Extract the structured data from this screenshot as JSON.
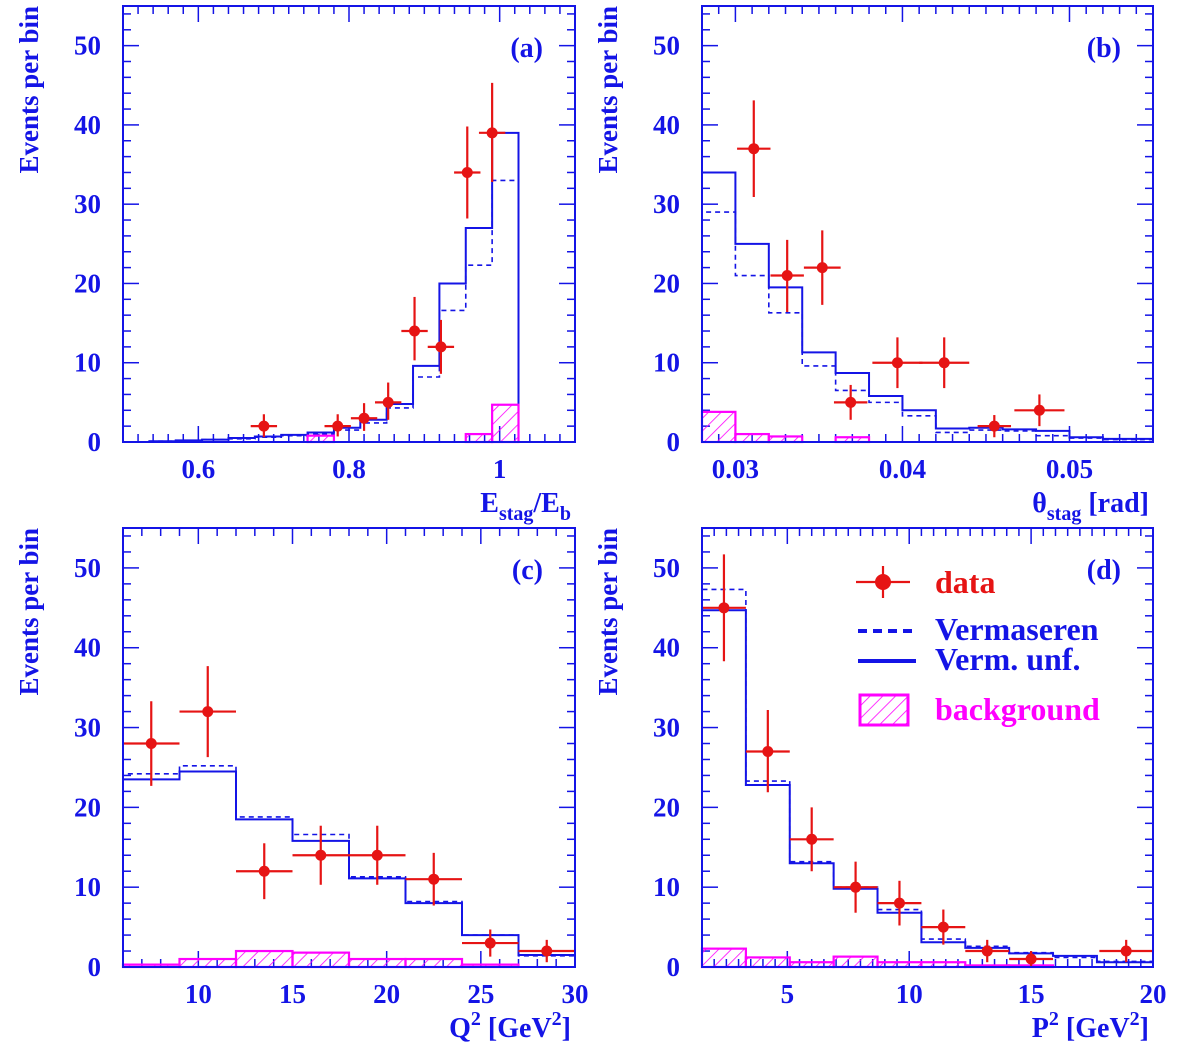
{
  "colors": {
    "axis": "#1414e6",
    "mc": "#1414e6",
    "data": "#e61414",
    "background": "#ff00ff"
  },
  "legend": {
    "data_label": "data",
    "vermaseren_label": "Vermaseren",
    "unf_label": "Verm. unf.",
    "background_label": "background"
  },
  "chart_data": [
    {
      "panel": "(a)",
      "type": "histogram",
      "ylabel": "Events per bin",
      "xlabel": {
        "main": "E",
        "sub": "stag",
        "mid": "/E",
        "sub2": "b",
        "rest": ""
      },
      "xlim": [
        0.5,
        1.1
      ],
      "ylim": [
        0,
        55
      ],
      "x_ticks": [
        0.6,
        0.8,
        1.0
      ],
      "x_tick_labels": [
        "0.6",
        "0.8",
        "1"
      ],
      "x_minor": 0.02,
      "y_ticks": [
        0,
        10,
        20,
        30,
        40,
        50
      ],
      "y_minor": 2,
      "grid": false,
      "bin_edges": [
        0.5,
        0.535,
        0.57,
        0.605,
        0.64,
        0.675,
        0.71,
        0.745,
        0.78,
        0.815,
        0.85,
        0.885,
        0.92,
        0.955,
        0.99,
        1.025,
        1.06,
        1.1
      ],
      "series": [
        {
          "name": "Verm. unf.",
          "style": "solid",
          "values": [
            0,
            0.1,
            0.2,
            0.3,
            0.5,
            0.7,
            0.9,
            1.2,
            1.8,
            2.8,
            4.8,
            9.6,
            20,
            27,
            39,
            0,
            0
          ]
        },
        {
          "name": "Vermaseren",
          "style": "dashed",
          "values": [
            0,
            0.1,
            0.2,
            0.3,
            0.4,
            0.6,
            0.8,
            1.0,
            1.5,
            2.4,
            4.3,
            8.2,
            16.6,
            22.3,
            33,
            0,
            0
          ]
        },
        {
          "name": "background",
          "style": "hatched",
          "values": [
            0,
            0,
            0,
            0,
            0,
            0,
            0,
            0.8,
            0,
            0,
            0,
            0,
            0,
            1.0,
            4.7,
            0,
            0
          ]
        }
      ],
      "data_points": [
        {
          "x": 0.687,
          "y": 2,
          "xerr": 0.0175,
          "yerr_low": 1.4,
          "yerr_high": 1.5
        },
        {
          "x": 0.785,
          "y": 2,
          "xerr": 0.0175,
          "yerr_low": 1.3,
          "yerr_high": 1.5
        },
        {
          "x": 0.82,
          "y": 3,
          "xerr": 0.0175,
          "yerr_low": 1.6,
          "yerr_high": 1.9
        },
        {
          "x": 0.852,
          "y": 5,
          "xerr": 0.0175,
          "yerr_low": 2.2,
          "yerr_high": 2.5
        },
        {
          "x": 0.887,
          "y": 14,
          "xerr": 0.0175,
          "yerr_low": 3.7,
          "yerr_high": 4.3
        },
        {
          "x": 0.922,
          "y": 12,
          "xerr": 0.0175,
          "yerr_low": 3.4,
          "yerr_high": 3.4
        },
        {
          "x": 0.957,
          "y": 34,
          "xerr": 0.0175,
          "yerr_low": 5.8,
          "yerr_high": 5.8
        },
        {
          "x": 0.99,
          "y": 39,
          "xerr": 0.0175,
          "yerr_low": 6.2,
          "yerr_high": 6.3
        }
      ]
    },
    {
      "panel": "(b)",
      "type": "histogram",
      "ylabel": "Events per bin",
      "xlabel": {
        "main": "θ",
        "sub": "stag",
        "mid": "",
        "sub2": "",
        "rest": " [rad]"
      },
      "xlim": [
        0.028,
        0.055
      ],
      "ylim": [
        0,
        55
      ],
      "x_ticks": [
        0.03,
        0.04,
        0.05
      ],
      "x_tick_labels": [
        "0.03",
        "0.04",
        "0.05"
      ],
      "x_minor": 0.001,
      "y_ticks": [
        0,
        10,
        20,
        30,
        40,
        50
      ],
      "y_minor": 2,
      "grid": false,
      "bin_edges": [
        0.028,
        0.03,
        0.032,
        0.034,
        0.036,
        0.038,
        0.04,
        0.042,
        0.044,
        0.046,
        0.048,
        0.05,
        0.052,
        0.055
      ],
      "series": [
        {
          "name": "Verm. unf.",
          "style": "solid",
          "values": [
            34,
            25,
            19.5,
            11.3,
            8.7,
            5.8,
            4.0,
            1.7,
            1.8,
            1.6,
            1.4,
            0.6,
            0.4
          ]
        },
        {
          "name": "Vermaseren",
          "style": "dashed",
          "values": [
            29,
            21,
            16.3,
            9.6,
            6.5,
            5.0,
            3.3,
            1.2,
            1.5,
            1.4,
            0.8,
            0.5,
            0.3
          ]
        },
        {
          "name": "background",
          "style": "hatched",
          "values": [
            3.8,
            1.0,
            0.7,
            0,
            0.6,
            0,
            0,
            0,
            0,
            0,
            0,
            0,
            0
          ]
        }
      ],
      "data_points": [
        {
          "x": 0.0311,
          "y": 37,
          "xerr": 0.001,
          "yerr_low": 6.1,
          "yerr_high": 6.1
        },
        {
          "x": 0.0331,
          "y": 21,
          "xerr": 0.001,
          "yerr_low": 4.6,
          "yerr_high": 4.5
        },
        {
          "x": 0.0352,
          "y": 22,
          "xerr": 0.0011,
          "yerr_low": 4.7,
          "yerr_high": 4.7
        },
        {
          "x": 0.0369,
          "y": 5,
          "xerr": 0.001,
          "yerr_low": 2.2,
          "yerr_high": 2.2
        },
        {
          "x": 0.0397,
          "y": 10,
          "xerr": 0.0015,
          "yerr_low": 3.2,
          "yerr_high": 3.2
        },
        {
          "x": 0.0425,
          "y": 10,
          "xerr": 0.0015,
          "yerr_low": 3.2,
          "yerr_high": 3.2
        },
        {
          "x": 0.0455,
          "y": 2,
          "xerr": 0.001,
          "yerr_low": 1.4,
          "yerr_high": 1.4
        },
        {
          "x": 0.0482,
          "y": 4,
          "xerr": 0.0015,
          "yerr_low": 2.0,
          "yerr_high": 2.0
        }
      ]
    },
    {
      "panel": "(c)",
      "type": "histogram",
      "ylabel": "Events per bin",
      "xlabel": {
        "main": "Q",
        "sup": "2",
        "rest": " [GeV",
        "sup2": "2",
        "rest2": "]"
      },
      "xlim": [
        6,
        30
      ],
      "ylim": [
        0,
        55
      ],
      "x_ticks": [
        10,
        15,
        20,
        25,
        30
      ],
      "x_tick_labels": [
        "10",
        "15",
        "20",
        "25",
        "30"
      ],
      "x_minor": 1,
      "y_ticks": [
        0,
        10,
        20,
        30,
        40,
        50
      ],
      "y_minor": 2,
      "grid": false,
      "bin_edges": [
        6,
        9,
        12,
        15,
        18,
        21,
        24,
        27,
        30
      ],
      "series": [
        {
          "name": "Verm. unf.",
          "style": "solid",
          "values": [
            23.5,
            24.5,
            18.5,
            15.8,
            11.1,
            8.0,
            4.0,
            1.5
          ]
        },
        {
          "name": "Vermaseren",
          "style": "dashed",
          "values": [
            24.2,
            25.2,
            18.8,
            16.6,
            11.3,
            8.2,
            4.0,
            1.4
          ]
        },
        {
          "name": "background",
          "style": "hatched",
          "values": [
            0.3,
            1.0,
            2.0,
            1.8,
            1.0,
            1.0,
            0.3,
            0
          ]
        }
      ],
      "data_points": [
        {
          "x": 7.5,
          "y": 28,
          "xerr": 1.5,
          "yerr_low": 5.3,
          "yerr_high": 5.3
        },
        {
          "x": 10.5,
          "y": 32,
          "xerr": 1.5,
          "yerr_low": 5.7,
          "yerr_high": 5.7
        },
        {
          "x": 13.5,
          "y": 12,
          "xerr": 1.5,
          "yerr_low": 3.5,
          "yerr_high": 3.5
        },
        {
          "x": 16.5,
          "y": 14,
          "xerr": 1.5,
          "yerr_low": 3.7,
          "yerr_high": 3.7
        },
        {
          "x": 19.5,
          "y": 14,
          "xerr": 1.5,
          "yerr_low": 3.7,
          "yerr_high": 3.7
        },
        {
          "x": 22.5,
          "y": 11,
          "xerr": 1.5,
          "yerr_low": 3.3,
          "yerr_high": 3.3
        },
        {
          "x": 25.5,
          "y": 3,
          "xerr": 1.5,
          "yerr_low": 1.7,
          "yerr_high": 1.7
        },
        {
          "x": 28.5,
          "y": 2,
          "xerr": 1.5,
          "yerr_low": 1.4,
          "yerr_high": 1.4
        }
      ]
    },
    {
      "panel": "(d)",
      "type": "histogram",
      "ylabel": "Events per bin",
      "xlabel": {
        "main": "P",
        "sup": "2",
        "rest": " [GeV",
        "sup2": "2",
        "rest2": "]"
      },
      "xlim": [
        1.5,
        20
      ],
      "ylim": [
        0,
        55
      ],
      "x_ticks": [
        5,
        10,
        15,
        20
      ],
      "x_tick_labels": [
        "5",
        "10",
        "15",
        "20"
      ],
      "x_minor": 0.5,
      "y_ticks": [
        0,
        10,
        20,
        30,
        40,
        50
      ],
      "y_minor": 2,
      "grid": false,
      "bin_edges": [
        1.5,
        3.3,
        5.1,
        6.9,
        8.7,
        10.5,
        12.3,
        14.1,
        15.9,
        17.7,
        20
      ],
      "series": [
        {
          "name": "Verm. unf.",
          "style": "solid",
          "values": [
            44.7,
            22.8,
            13.0,
            9.8,
            6.8,
            3.1,
            2.4,
            1.7,
            1.4,
            0.6
          ]
        },
        {
          "name": "Vermaseren",
          "style": "dashed",
          "values": [
            47.3,
            23.3,
            13.2,
            10.0,
            7.2,
            3.5,
            2.6,
            1.8,
            1.2,
            0.7
          ]
        },
        {
          "name": "background",
          "style": "hatched",
          "values": [
            2.3,
            1.2,
            0.6,
            1.3,
            0.6,
            0.6,
            0.2,
            0.2,
            0,
            0
          ]
        }
      ],
      "data_points": [
        {
          "x": 2.4,
          "y": 45,
          "xerr": 0.9,
          "yerr_low": 6.7,
          "yerr_high": 6.7
        },
        {
          "x": 4.2,
          "y": 27,
          "xerr": 0.9,
          "yerr_low": 5.1,
          "yerr_high": 5.2
        },
        {
          "x": 6.0,
          "y": 16,
          "xerr": 0.9,
          "yerr_low": 4.0,
          "yerr_high": 4.0
        },
        {
          "x": 7.8,
          "y": 10,
          "xerr": 0.9,
          "yerr_low": 3.2,
          "yerr_high": 3.2
        },
        {
          "x": 9.6,
          "y": 8,
          "xerr": 0.9,
          "yerr_low": 2.8,
          "yerr_high": 2.8
        },
        {
          "x": 11.4,
          "y": 5,
          "xerr": 0.9,
          "yerr_low": 2.2,
          "yerr_high": 2.2
        },
        {
          "x": 13.2,
          "y": 2,
          "xerr": 0.9,
          "yerr_low": 1.4,
          "yerr_high": 1.4
        },
        {
          "x": 15.0,
          "y": 1,
          "xerr": 0.9,
          "yerr_low": 1.0,
          "yerr_high": 1.0
        },
        {
          "x": 18.9,
          "y": 2,
          "xerr": 1.1,
          "yerr_low": 1.4,
          "yerr_high": 1.4
        }
      ]
    }
  ]
}
